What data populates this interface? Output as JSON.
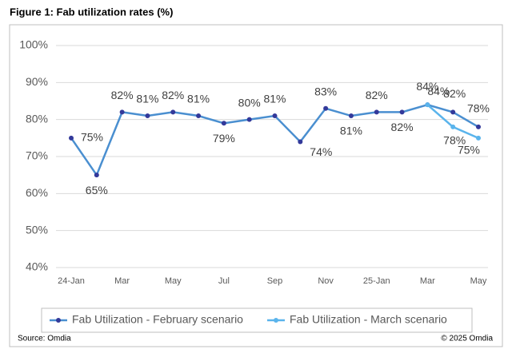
{
  "chart_data": {
    "type": "line",
    "title": "Figure 1: Fab utilization rates (%)",
    "categories": [
      "24-Jan",
      null,
      "Mar",
      null,
      "May",
      null,
      "Jul",
      null,
      "Sep",
      null,
      "Nov",
      null,
      "25-Jan",
      null,
      "Mar",
      null,
      "May"
    ],
    "series": [
      {
        "name": "Fab Utilization - February scenario",
        "color": "#4a8fd0",
        "marker_color": "#33399a",
        "values": [
          75,
          65,
          82,
          81,
          82,
          81,
          79,
          80,
          81,
          74,
          83,
          81,
          82,
          82,
          84,
          82,
          78
        ],
        "value_labels": [
          "75%",
          "65%",
          "82%",
          "81%",
          "82%",
          "81%",
          "79%",
          "80%",
          "81%",
          "74%",
          "83%",
          "81%",
          "82%",
          "82%",
          "84%",
          "82%",
          "78%"
        ]
      },
      {
        "name": "Fab Utilization - March scenario",
        "color": "#5ab4ec",
        "marker_color": "#5ab4ec",
        "values": [
          null,
          null,
          null,
          null,
          null,
          null,
          null,
          null,
          null,
          null,
          null,
          null,
          null,
          null,
          84,
          78,
          75
        ],
        "value_labels": [
          null,
          null,
          null,
          null,
          null,
          null,
          null,
          null,
          null,
          null,
          null,
          null,
          null,
          null,
          "84%",
          "78%",
          "75%"
        ]
      }
    ],
    "ylim": [
      40,
      100
    ],
    "yticks": [
      {
        "value": 40,
        "label": "40%"
      },
      {
        "value": 50,
        "label": "50%"
      },
      {
        "value": 60,
        "label": "60%"
      },
      {
        "value": 70,
        "label": "70%"
      },
      {
        "value": 80,
        "label": "80%"
      },
      {
        "value": 90,
        "label": "90%"
      },
      {
        "value": 100,
        "label": "100%"
      }
    ],
    "grid": true,
    "legend": "bottom",
    "source": "Source: Omdia",
    "copyright": "© 2025 Omdia"
  }
}
